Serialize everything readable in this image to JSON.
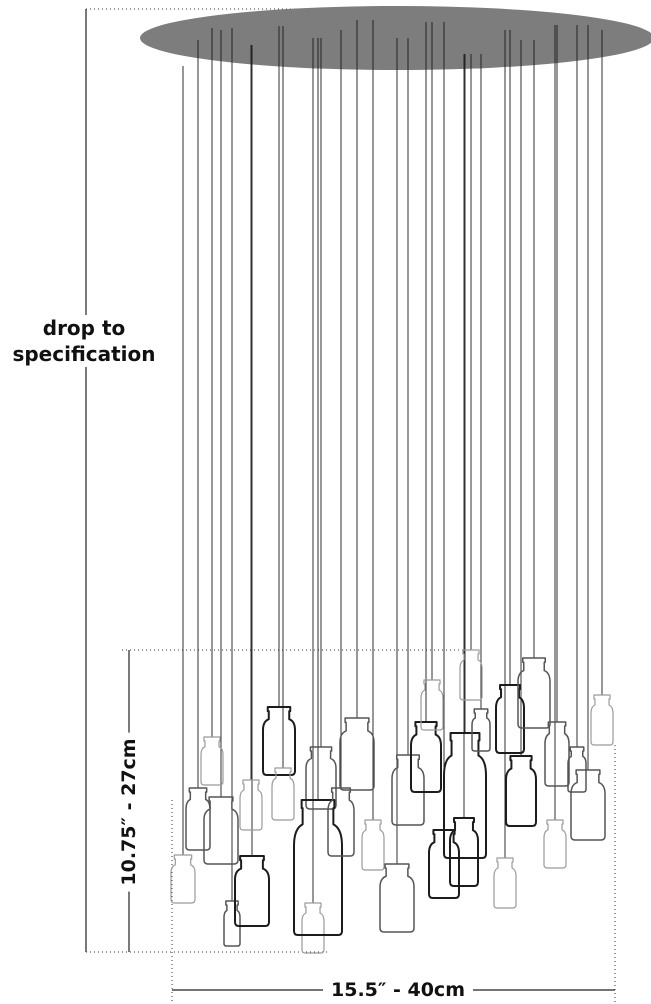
{
  "dimensions": {
    "drop": {
      "line1": "drop to",
      "line2": "specification"
    },
    "height": "10.75″ - 27cm",
    "width": "15.5″ - 40cm"
  },
  "colors": {
    "canopy": "#7d7d7d",
    "line": "#1a1a1a",
    "bottle_dark": "#1c1c1c",
    "bottle_mid": "#555555",
    "bottle_light": "#9a9a9a"
  },
  "pendant_count": 30
}
